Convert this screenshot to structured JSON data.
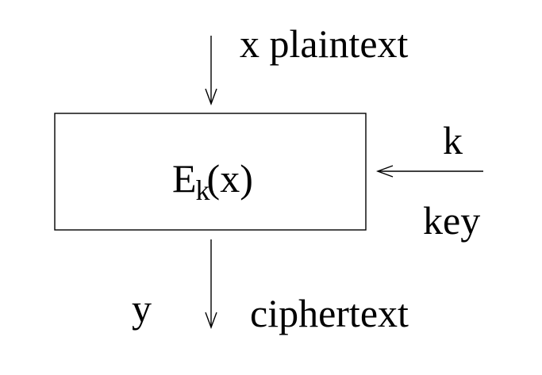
{
  "input": {
    "variable": "x",
    "name": "plaintext"
  },
  "function": {
    "symbol": "E",
    "subscript": "k",
    "argument": "(x)"
  },
  "key": {
    "variable": "k",
    "name": "key"
  },
  "output": {
    "variable": "y",
    "name": "ciphertext"
  }
}
